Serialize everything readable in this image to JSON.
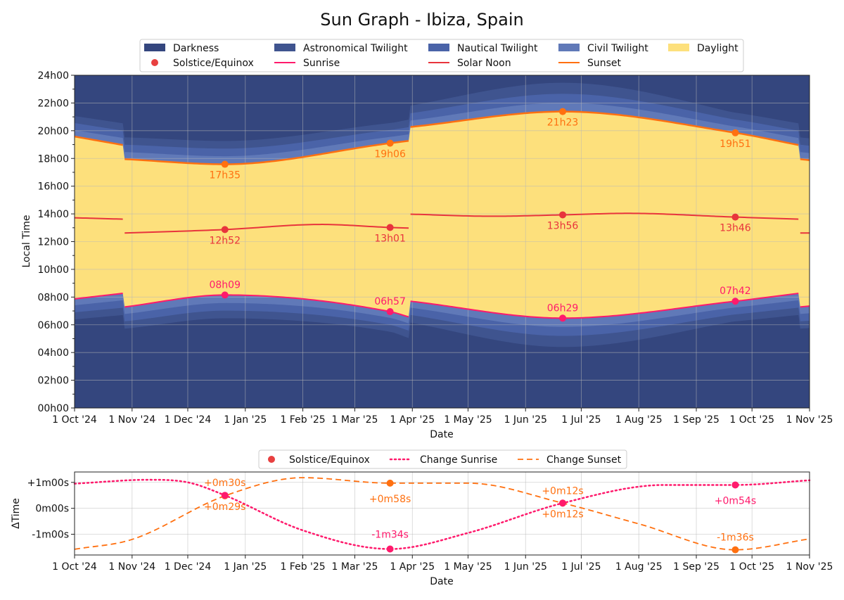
{
  "title": "Sun Graph - Ibiza, Spain",
  "colors": {
    "darkness": "#34467e",
    "astronomical": "#3f548f",
    "nautical": "#4a63a8",
    "civil": "#6079b8",
    "daylight": "#fde07c",
    "sunrise": "#ff1a6c",
    "noon": "#e8343c",
    "sunset": "#ff7010",
    "marker": "#e84040",
    "grid": "#b8b8b8"
  },
  "legend_main": {
    "darkness": "Darkness",
    "astronomical": "Astronomical Twilight",
    "nautical": "Nautical Twilight",
    "civil": "Civil Twilight",
    "daylight": "Daylight",
    "solstice": "Solstice/Equinox",
    "sunrise": "Sunrise",
    "noon": "Solar Noon",
    "sunset": "Sunset"
  },
  "legend_bottom": {
    "solstice": "Solstice/Equinox",
    "change_sunrise": "Change Sunrise",
    "change_sunset": "Change Sunset"
  },
  "x_tick_labels": [
    "1 Oct '24",
    "1 Nov '24",
    "1 Dec '24",
    "1 Jan '25",
    "1 Feb '25",
    "1 Mar '25",
    "1 Apr '25",
    "1 May '25",
    "1 Jun '25",
    "1 Jul '25",
    "1 Aug '25",
    "1 Sep '25",
    "1 Oct '25",
    "1 Nov '25"
  ],
  "chart_data": [
    {
      "type": "area",
      "title": "Sun Graph - Ibiza, Spain",
      "xlabel": "Date",
      "ylabel": "Local Time",
      "xlim": [
        "2024-10-01",
        "2025-11-01"
      ],
      "ylim": [
        0,
        24
      ],
      "y_tick_labels": [
        "00h00",
        "02h00",
        "04h00",
        "06h00",
        "08h00",
        "10h00",
        "12h00",
        "14h00",
        "16h00",
        "18h00",
        "20h00",
        "22h00",
        "24h00"
      ],
      "grid": true,
      "legend_position": "top-center",
      "dst_changes": [
        "2024-10-27",
        "2025-03-30",
        "2025-10-26"
      ],
      "series": [
        {
          "name": "Sunrise",
          "points": [
            [
              "2024-10-01",
              7.87
            ],
            [
              "2024-10-27",
              8.27
            ],
            [
              "2024-10-28",
              7.29
            ],
            [
              "2024-12-21",
              8.15
            ],
            [
              "2025-03-20",
              6.95
            ],
            [
              "2025-03-30",
              6.57
            ],
            [
              "2025-03-31",
              7.7
            ],
            [
              "2025-06-21",
              6.48
            ],
            [
              "2025-09-22",
              7.7
            ],
            [
              "2025-10-26",
              8.27
            ],
            [
              "2025-10-27",
              7.29
            ],
            [
              "2025-11-01",
              7.35
            ]
          ]
        },
        {
          "name": "Solar Noon",
          "points": [
            [
              "2024-10-01",
              13.72
            ],
            [
              "2024-10-27",
              13.62
            ],
            [
              "2024-10-28",
              12.62
            ],
            [
              "2024-12-21",
              12.87
            ],
            [
              "2025-02-11",
              13.24
            ],
            [
              "2025-03-20",
              13.02
            ],
            [
              "2025-03-30",
              12.98
            ],
            [
              "2025-03-31",
              13.98
            ],
            [
              "2025-05-14",
              13.83
            ],
            [
              "2025-06-21",
              13.93
            ],
            [
              "2025-07-26",
              14.04
            ],
            [
              "2025-09-22",
              13.77
            ],
            [
              "2025-10-26",
              13.62
            ],
            [
              "2025-10-27",
              12.62
            ],
            [
              "2025-11-01",
              12.62
            ]
          ]
        },
        {
          "name": "Sunset",
          "points": [
            [
              "2024-10-01",
              19.58
            ],
            [
              "2024-10-27",
              18.97
            ],
            [
              "2024-10-28",
              17.95
            ],
            [
              "2024-12-21",
              17.58
            ],
            [
              "2025-03-20",
              19.1
            ],
            [
              "2025-03-30",
              19.27
            ],
            [
              "2025-03-31",
              20.27
            ],
            [
              "2025-06-21",
              21.38
            ],
            [
              "2025-09-22",
              19.85
            ],
            [
              "2025-10-26",
              18.97
            ],
            [
              "2025-10-27",
              17.95
            ],
            [
              "2025-11-01",
              17.87
            ]
          ]
        }
      ],
      "events": [
        {
          "date": "2024-12-21",
          "sunrise": "08h09",
          "noon": "12h52",
          "sunset": "17h35"
        },
        {
          "date": "2025-03-20",
          "sunrise": "06h57",
          "noon": "13h01",
          "sunset": "19h06"
        },
        {
          "date": "2025-06-21",
          "sunrise": "06h29",
          "noon": "13h56",
          "sunset": "21h23"
        },
        {
          "date": "2025-09-22",
          "sunrise": "07h42",
          "noon": "13h46",
          "sunset": "19h51"
        }
      ],
      "twilight_widths_hours": {
        "civil": {
          "solstice_winter": 0.5,
          "equinox": 0.45,
          "solstice_summer": 0.55
        },
        "nautical": {
          "solstice_winter": 1.05,
          "equinox": 0.95,
          "solstice_summer": 1.2
        },
        "astronomical": {
          "solstice_winter": 1.6,
          "equinox": 1.45,
          "solstice_summer": 2.0
        }
      }
    },
    {
      "type": "line",
      "xlabel": "Date",
      "ylabel": "ΔTime",
      "xlim": [
        "2024-10-01",
        "2025-11-01"
      ],
      "ylim": [
        -1.8,
        1.4
      ],
      "y_tick_labels": [
        "-1m00s",
        "0m00s",
        "+1m00s"
      ],
      "grid": true,
      "legend_position": "top-center",
      "series": [
        {
          "name": "Change Sunrise",
          "points": [
            [
              "2024-10-01",
              0.95
            ],
            [
              "2024-11-10",
              1.1
            ],
            [
              "2024-12-01",
              1.0
            ],
            [
              "2024-12-21",
              0.5
            ],
            [
              "2025-02-01",
              -0.85
            ],
            [
              "2025-03-20",
              -1.57
            ],
            [
              "2025-05-01",
              -0.95
            ],
            [
              "2025-06-21",
              0.2
            ],
            [
              "2025-08-15",
              0.9
            ],
            [
              "2025-09-22",
              0.9
            ],
            [
              "2025-11-01",
              1.08
            ]
          ]
        },
        {
          "name": "Change Sunset",
          "points": [
            [
              "2024-10-01",
              -1.58
            ],
            [
              "2024-11-01",
              -1.2
            ],
            [
              "2024-12-21",
              0.48
            ],
            [
              "2025-02-01",
              1.18
            ],
            [
              "2025-03-20",
              0.97
            ],
            [
              "2025-05-01",
              0.97
            ],
            [
              "2025-06-21",
              0.2
            ],
            [
              "2025-08-01",
              -0.6
            ],
            [
              "2025-09-22",
              -1.6
            ],
            [
              "2025-11-01",
              -1.18
            ]
          ]
        }
      ],
      "events": [
        {
          "date": "2024-12-21",
          "sunrise_change": "+0m30s",
          "sunset_change": "+0m29s",
          "sunrise_value": 0.5,
          "sunset_value": 0.48
        },
        {
          "date": "2025-03-20",
          "sunrise_change": "-1m34s",
          "sunset_change": "+0m58s",
          "sunrise_value": -1.57,
          "sunset_value": 0.97
        },
        {
          "date": "2025-06-21",
          "sunrise_change": "+0m12s",
          "sunset_change": "+0m12s",
          "sunrise_value": 0.2,
          "sunset_value": 0.2
        },
        {
          "date": "2025-09-22",
          "sunrise_change": "+0m54s",
          "sunset_change": "-1m36s",
          "sunrise_value": 0.9,
          "sunset_value": -1.6
        }
      ]
    }
  ]
}
